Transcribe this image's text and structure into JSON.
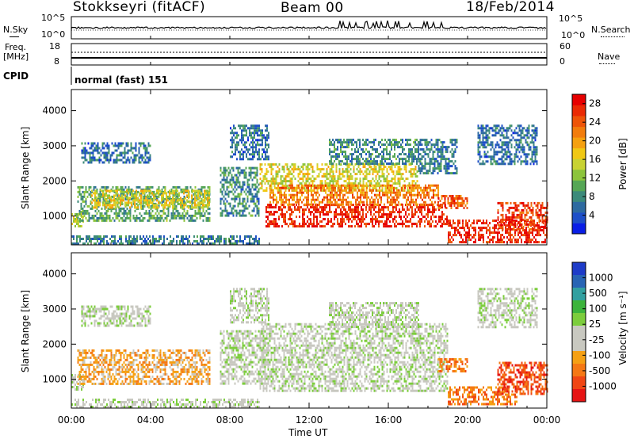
{
  "header": {
    "station": "Stokkseyri (fitACF)",
    "beam": "Beam 00",
    "date": "18/Feb/2014"
  },
  "strips": {
    "nsky_label": "N.Sky",
    "nsky_ticks": [
      "10^5",
      "10^0"
    ],
    "nsearch_label": "N.Search",
    "freq_label_1": "Freq.",
    "freq_label_2": "[MHz]",
    "freq_ticks": [
      "18",
      "8"
    ],
    "nave_ticks": [
      "60",
      "0"
    ],
    "nave_label": "Nave",
    "cpid_label": "CPID",
    "cpid_value": "normal (fast) 151"
  },
  "chart_data": [
    {
      "type": "heatmap",
      "panel": "power",
      "ylabel": "Slant Range [km]",
      "xlabel": "Time UT",
      "x_ticks": [
        "00:00",
        "04:00",
        "08:00",
        "12:00",
        "16:00",
        "20:00",
        "00:00"
      ],
      "y_ticks": [
        1000,
        2000,
        3000,
        4000
      ],
      "xlim_hours": [
        0,
        24
      ],
      "ylim_km": [
        180,
        4600
      ],
      "colorbar": {
        "label": "Power [dB]",
        "ticks": [
          4,
          8,
          12,
          16,
          20,
          24,
          28
        ],
        "range": [
          0,
          30
        ],
        "colors": [
          "#0a1ee6",
          "#1e4fc8",
          "#2e6aa0",
          "#3c8a7a",
          "#55a655",
          "#8cc43c",
          "#c8d232",
          "#f0c814",
          "#f5a00f",
          "#f27c0c",
          "#ee5408",
          "#ea2a04",
          "#e60000"
        ]
      },
      "regions": [
        {
          "t": [
            0.0,
            0.6
          ],
          "r": [
            700,
            1150
          ],
          "level": 14
        },
        {
          "t": [
            0.3,
            7.0
          ],
          "r": [
            900,
            1850
          ],
          "level": 10
        },
        {
          "t": [
            1.0,
            7.0
          ],
          "r": [
            1250,
            1750
          ],
          "level": 16
        },
        {
          "t": [
            0.5,
            4.0
          ],
          "r": [
            2500,
            3100
          ],
          "level": 6
        },
        {
          "t": [
            0.0,
            9.5
          ],
          "r": [
            180,
            450
          ],
          "level": 7
        },
        {
          "t": [
            7.5,
            9.5
          ],
          "r": [
            1000,
            2400
          ],
          "level": 8
        },
        {
          "t": [
            8.0,
            10.0
          ],
          "r": [
            2600,
            3600
          ],
          "level": 6
        },
        {
          "t": [
            9.5,
            17.5
          ],
          "r": [
            1700,
            2500
          ],
          "level": 16
        },
        {
          "t": [
            9.8,
            19.0
          ],
          "r": [
            700,
            1350
          ],
          "level": 27
        },
        {
          "t": [
            10.0,
            18.5
          ],
          "r": [
            1350,
            1900
          ],
          "level": 22
        },
        {
          "t": [
            13.0,
            17.5
          ],
          "r": [
            2500,
            3200
          ],
          "level": 8
        },
        {
          "t": [
            17.5,
            19.5
          ],
          "r": [
            2200,
            3200
          ],
          "level": 7
        },
        {
          "t": [
            19.0,
            24.0
          ],
          "r": [
            250,
            900
          ],
          "level": 27
        },
        {
          "t": [
            21.5,
            24.0
          ],
          "r": [
            600,
            1400
          ],
          "level": 26
        },
        {
          "t": [
            18.5,
            20.0
          ],
          "r": [
            1200,
            1600
          ],
          "level": 24
        },
        {
          "t": [
            20.5,
            23.5
          ],
          "r": [
            2500,
            3600
          ],
          "level": 6
        }
      ]
    },
    {
      "type": "heatmap",
      "panel": "velocity",
      "ylabel": "Slant Range [km]",
      "xlabel": "Time UT",
      "x_ticks": [
        "00:00",
        "04:00",
        "08:00",
        "12:00",
        "16:00",
        "20:00",
        "00:00"
      ],
      "y_ticks": [
        1000,
        2000,
        3000,
        4000
      ],
      "xlim_hours": [
        0,
        24
      ],
      "ylim_km": [
        180,
        4600
      ],
      "colorbar": {
        "label": "Velocity [m s⁻¹]",
        "ticks": [
          "1000",
          "500",
          "100",
          "25",
          "-25",
          "-100",
          "-500",
          "-1000"
        ],
        "colors": [
          "#1e3cc8",
          "#2864b4",
          "#32a0a0",
          "#3cb43c",
          "#7ccd3c",
          "#c8c8c0",
          "#c8c8c0",
          "#f5a014",
          "#f57814",
          "#f04614",
          "#e61414"
        ]
      },
      "regions": [
        {
          "t": [
            0.0,
            0.6
          ],
          "r": [
            700,
            1150
          ],
          "level": 5
        },
        {
          "t": [
            0.3,
            7.0
          ],
          "r": [
            900,
            1850
          ],
          "level": 7
        },
        {
          "t": [
            0.5,
            4.0
          ],
          "r": [
            2500,
            3100
          ],
          "level": 5
        },
        {
          "t": [
            0.0,
            9.5
          ],
          "r": [
            180,
            450
          ],
          "level": 5
        },
        {
          "t": [
            7.5,
            9.8
          ],
          "r": [
            900,
            2400
          ],
          "level": 5
        },
        {
          "t": [
            8.0,
            10.0
          ],
          "r": [
            2600,
            3600
          ],
          "level": 5
        },
        {
          "t": [
            9.5,
            19.0
          ],
          "r": [
            700,
            2600
          ],
          "level": 5
        },
        {
          "t": [
            13.0,
            17.5
          ],
          "r": [
            2500,
            3200
          ],
          "level": 5
        },
        {
          "t": [
            19.0,
            22.5
          ],
          "r": [
            300,
            800
          ],
          "level": 8
        },
        {
          "t": [
            21.5,
            24.0
          ],
          "r": [
            600,
            1500
          ],
          "level": 9
        },
        {
          "t": [
            18.5,
            20.0
          ],
          "r": [
            1200,
            1600
          ],
          "level": 8
        },
        {
          "t": [
            20.5,
            23.5
          ],
          "r": [
            2500,
            3600
          ],
          "level": 5
        }
      ]
    }
  ]
}
